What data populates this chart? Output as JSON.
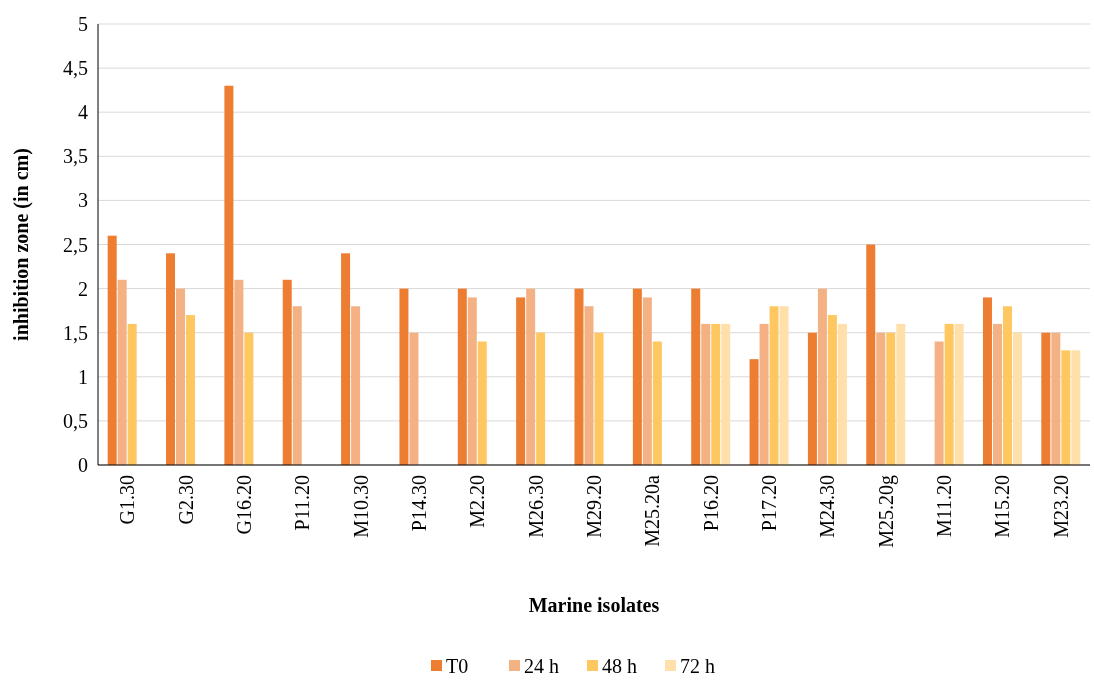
{
  "chart_data": {
    "type": "bar",
    "xlabel": "Marine isolates",
    "ylabel": "inhibition zone (in cm)",
    "categories": [
      "G1.30",
      "G2.30",
      "G16.20",
      "P11.20",
      "M10.30",
      "P14.30",
      "M2.20",
      "M26.30",
      "M29.20",
      "M25.20a",
      "P16.20",
      "P17.20",
      "M24.30",
      "M25.20g",
      "M11.20",
      "M15.20",
      "M23.20"
    ],
    "series": [
      {
        "name": "T0",
        "color": "#ed7d31",
        "values": [
          2.6,
          2.4,
          4.3,
          2.1,
          2.4,
          2.0,
          2.0,
          1.9,
          2.0,
          2.0,
          2.0,
          1.2,
          1.5,
          2.5,
          null,
          1.9,
          1.5
        ]
      },
      {
        "name": "24 h",
        "color": "#f4b183",
        "values": [
          2.1,
          2.0,
          2.1,
          1.8,
          1.8,
          1.5,
          1.9,
          2.0,
          1.8,
          1.9,
          1.6,
          1.6,
          2.0,
          1.5,
          1.4,
          1.6,
          1.5
        ]
      },
      {
        "name": "48 h",
        "color": "#ffc75f",
        "values": [
          1.6,
          1.7,
          1.5,
          null,
          null,
          null,
          1.4,
          1.5,
          1.5,
          1.4,
          1.6,
          1.8,
          1.7,
          1.5,
          1.6,
          1.8,
          1.3
        ]
      },
      {
        "name": "72 h",
        "color": "#ffdfaa",
        "values": [
          null,
          null,
          null,
          null,
          null,
          null,
          null,
          null,
          null,
          null,
          1.6,
          1.8,
          1.6,
          1.6,
          1.6,
          1.5,
          1.3
        ]
      }
    ],
    "ylim": [
      0,
      5
    ],
    "yticks": [
      0,
      {
        "value": 0.5,
        "label": "0,5"
      },
      1,
      {
        "value": 1.5,
        "label": "1,5"
      },
      2,
      {
        "value": 2.5,
        "label": "2,5"
      },
      3,
      {
        "value": 3.5,
        "label": "3,5"
      },
      4,
      {
        "value": 4.5,
        "label": "4,5"
      },
      5
    ],
    "grid": "y",
    "legend": "bottom"
  }
}
